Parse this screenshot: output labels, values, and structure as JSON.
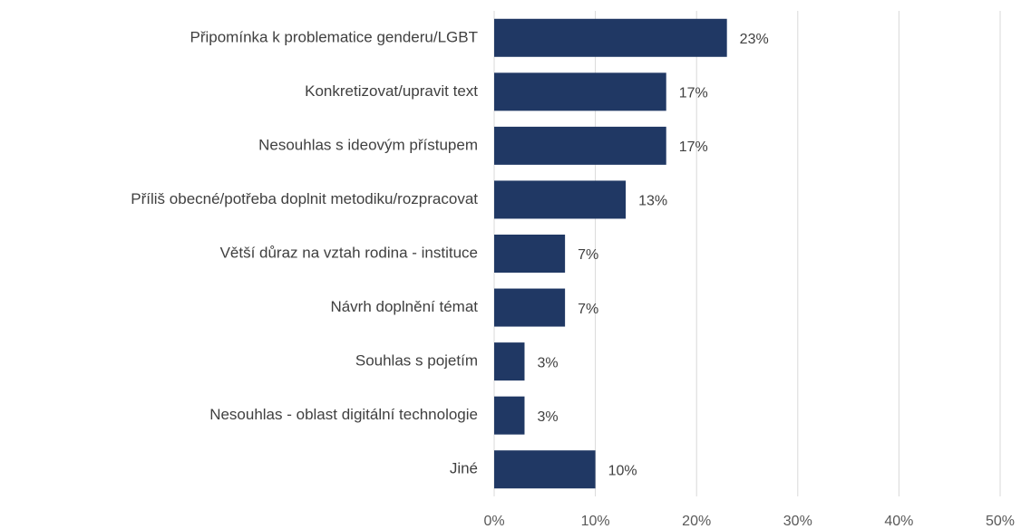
{
  "chart_data": {
    "type": "barh",
    "categories": [
      "Připomínka k problematice genderu/LGBT",
      "Konkretizovat/upravit text",
      "Nesouhlas s ideovým přístupem",
      "Příliš obecné/potřeba doplnit metodiku/rozpracovat",
      "Větší důraz na vztah rodina - instituce",
      "Návrh doplnění témat",
      "Souhlas s pojetím",
      "Nesouhlas - oblast digitální technologie",
      "Jiné"
    ],
    "values": [
      23,
      17,
      17,
      13,
      7,
      7,
      3,
      3,
      10
    ],
    "value_labels": [
      "23%",
      "17%",
      "17%",
      "13%",
      "7%",
      "7%",
      "3%",
      "3%",
      "10%"
    ],
    "color": "#203864",
    "xlim": [
      0,
      50
    ],
    "xticks": [
      {
        "value": 0,
        "label": "0%"
      },
      {
        "value": 10,
        "label": "10%"
      },
      {
        "value": 20,
        "label": "20%"
      },
      {
        "value": 30,
        "label": "30%"
      },
      {
        "value": 40,
        "label": "40%"
      },
      {
        "value": 50,
        "label": "50%"
      }
    ],
    "grid": true
  }
}
